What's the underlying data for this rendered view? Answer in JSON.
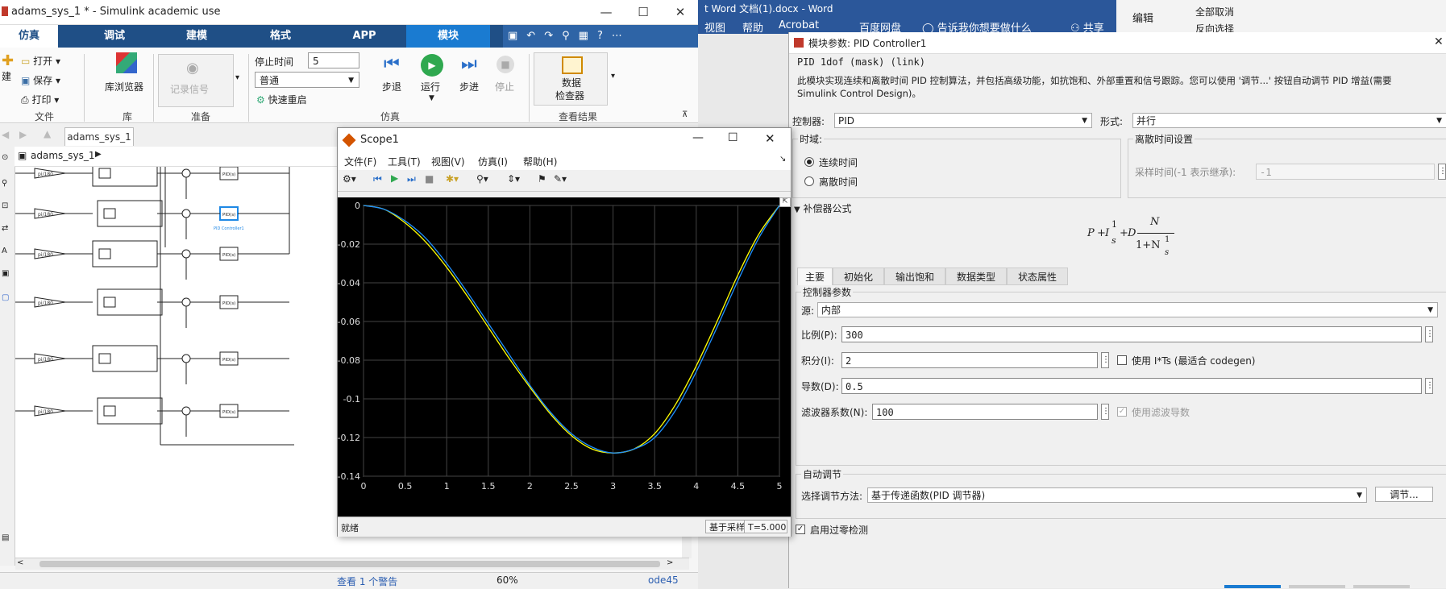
{
  "simulink": {
    "title": "adams_sys_1 * - Simulink academic use",
    "tabs": [
      "仿真",
      "调试",
      "建模",
      "格式",
      "APP",
      "模块"
    ],
    "file_section": {
      "open": "打开",
      "save": "保存",
      "print": "打印",
      "new_partial": "建",
      "label": "文件"
    },
    "library": {
      "browser": "库浏览器",
      "label": "库"
    },
    "prepare": {
      "record_signal": "记录信号",
      "label": "准备"
    },
    "simulation": {
      "stop_time_label": "停止时间",
      "stop_time_value": "5",
      "mode_value": "普通",
      "fast_restart": "快速重启",
      "step_back": "步退",
      "run": "运行",
      "step_forward": "步进",
      "stop": "停止",
      "label": "仿真"
    },
    "review": {
      "inspector_line1": "数据",
      "inspector_line2": "检查器",
      "label": "查看结果"
    },
    "model_tab": "adams_sys_1",
    "path": "adams_sys_1",
    "blocks": {
      "gain_label": "pi/180",
      "pid_label": "PID(s)",
      "selected_caption": "PID Controller1"
    },
    "status": {
      "warning": "查看 1 个警告",
      "zoom": "60%",
      "solver": "ode45"
    }
  },
  "word": {
    "tab_view_partial": "视图",
    "tab_help": "帮助",
    "tab_acrobat": "Acrobat",
    "tab_baidu": "百度网盘",
    "tell_me": "告诉我你想要做什么",
    "share": "共享",
    "title_partial": "t Word 文档(1).docx - Word",
    "edit": "编辑",
    "deselect_all": "全部取消",
    "reverse_select_partial": "反向选择"
  },
  "pid_dialog": {
    "title": "模块参数: PID Controller1",
    "header": "PID 1dof (mask) (link)",
    "description": "此模块实现连续和离散时间 PID 控制算法，并包括高级功能，如抗饱和、外部重置和信号跟踪。您可以使用 '调节...' 按钮自动调节 PID 增益(需要 Simulink Control Design)。",
    "controller_label": "控制器:",
    "controller_value": "PID",
    "form_label": "形式:",
    "form_value": "并行",
    "time_domain_label": "时域:",
    "continuous": "连续时间",
    "discrete": "离散时间",
    "discrete_settings_label": "离散时间设置",
    "sample_time_label": "采样时间(-1 表示继承):",
    "sample_time_value": "-1",
    "compensator_label": "补偿器公式",
    "formula": {
      "P": "P",
      "I": "I",
      "D": "D",
      "one": "1",
      "s": "s",
      "N": "N",
      "one_plus_N": "1+N"
    },
    "tabs": [
      "主要",
      "初始化",
      "输出饱和",
      "数据类型",
      "状态属性"
    ],
    "params_label": "控制器参数",
    "source_label": "源:",
    "source_value": "内部",
    "p_label": "比例(P):",
    "p_value": "300",
    "i_label": "积分(I):",
    "i_value": "2",
    "its_label": "使用 I*Ts (最适合 codegen)",
    "d_label": "导数(D):",
    "d_value": "0.5",
    "n_label": "滤波器系数(N):",
    "n_value": "100",
    "filtered_derivative": "使用滤波导数",
    "autotune_label": "自动调节",
    "tune_method_label": "选择调节方法:",
    "tune_method_value": "基于传递函数(PID 调节器)",
    "tune_button": "调节...",
    "zero_crossing": "启用过零检测"
  },
  "scope": {
    "title": "Scope1",
    "menu": [
      "文件(F)",
      "工具(T)",
      "视图(V)",
      "仿真(I)",
      "帮助(H)"
    ],
    "status_ready": "就绪",
    "status_sample": "基于采样",
    "status_time": "T=5.000"
  },
  "chart_data": {
    "type": "line",
    "xlim": [
      0,
      5
    ],
    "ylim": [
      -0.14,
      0
    ],
    "xticks": [
      "0",
      "0.5",
      "1",
      "1.5",
      "2",
      "2.5",
      "3",
      "3.5",
      "4",
      "4.5",
      "5"
    ],
    "yticks": [
      "0",
      "-0.02",
      "-0.04",
      "-0.06",
      "-0.08",
      "-0.1",
      "-0.12",
      "-0.14"
    ],
    "grid": true,
    "series": [
      {
        "color": "#ffff00",
        "x": [
          0,
          0.25,
          0.5,
          0.75,
          1,
          1.25,
          1.5,
          1.75,
          2,
          2.25,
          2.5,
          2.75,
          3,
          3.25,
          3.5,
          3.75,
          4,
          4.25,
          4.5,
          4.75,
          5
        ],
        "y": [
          0,
          -0.002,
          -0.009,
          -0.019,
          -0.032,
          -0.047,
          -0.063,
          -0.079,
          -0.094,
          -0.108,
          -0.119,
          -0.126,
          -0.128,
          -0.126,
          -0.118,
          -0.103,
          -0.083,
          -0.06,
          -0.036,
          -0.015,
          0
        ]
      },
      {
        "color": "#1e90ff",
        "x": [
          0,
          0.25,
          0.5,
          0.75,
          1,
          1.25,
          1.5,
          1.75,
          2,
          2.25,
          2.5,
          2.75,
          3,
          3.25,
          3.5,
          3.75,
          4,
          4.25,
          4.5,
          4.75,
          5
        ],
        "y": [
          0,
          -0.002,
          -0.008,
          -0.017,
          -0.03,
          -0.045,
          -0.061,
          -0.077,
          -0.093,
          -0.107,
          -0.118,
          -0.125,
          -0.128,
          -0.126,
          -0.12,
          -0.106,
          -0.086,
          -0.063,
          -0.039,
          -0.017,
          0
        ]
      }
    ]
  }
}
